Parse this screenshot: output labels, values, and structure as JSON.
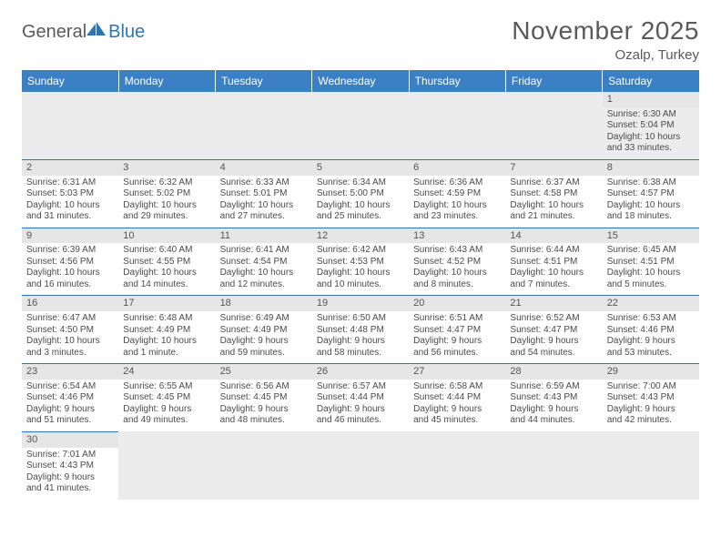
{
  "brand": {
    "part1": "General",
    "part2": "Blue"
  },
  "title": "November 2025",
  "location": "Ozalp, Turkey",
  "dayHeaders": [
    "Sunday",
    "Monday",
    "Tuesday",
    "Wednesday",
    "Thursday",
    "Friday",
    "Saturday"
  ],
  "colors": {
    "headerBg": "#3b7fc4",
    "headerText": "#ffffff",
    "border": "#2e74b5",
    "dayStrip": "#e6e6e6",
    "blankBg": "#ececec",
    "titleText": "#5a5a5a"
  },
  "typography": {
    "titleSize": 28,
    "locationSize": 15,
    "headerSize": 12,
    "cellSize": 10
  },
  "layout": {
    "cols": 7,
    "rows": 6
  },
  "weeks": [
    [
      null,
      null,
      null,
      null,
      null,
      null,
      {
        "n": "1",
        "sr": "Sunrise: 6:30 AM",
        "ss": "Sunset: 5:04 PM",
        "d1": "Daylight: 10 hours",
        "d2": "and 33 minutes."
      }
    ],
    [
      {
        "n": "2",
        "sr": "Sunrise: 6:31 AM",
        "ss": "Sunset: 5:03 PM",
        "d1": "Daylight: 10 hours",
        "d2": "and 31 minutes."
      },
      {
        "n": "3",
        "sr": "Sunrise: 6:32 AM",
        "ss": "Sunset: 5:02 PM",
        "d1": "Daylight: 10 hours",
        "d2": "and 29 minutes."
      },
      {
        "n": "4",
        "sr": "Sunrise: 6:33 AM",
        "ss": "Sunset: 5:01 PM",
        "d1": "Daylight: 10 hours",
        "d2": "and 27 minutes."
      },
      {
        "n": "5",
        "sr": "Sunrise: 6:34 AM",
        "ss": "Sunset: 5:00 PM",
        "d1": "Daylight: 10 hours",
        "d2": "and 25 minutes."
      },
      {
        "n": "6",
        "sr": "Sunrise: 6:36 AM",
        "ss": "Sunset: 4:59 PM",
        "d1": "Daylight: 10 hours",
        "d2": "and 23 minutes."
      },
      {
        "n": "7",
        "sr": "Sunrise: 6:37 AM",
        "ss": "Sunset: 4:58 PM",
        "d1": "Daylight: 10 hours",
        "d2": "and 21 minutes."
      },
      {
        "n": "8",
        "sr": "Sunrise: 6:38 AM",
        "ss": "Sunset: 4:57 PM",
        "d1": "Daylight: 10 hours",
        "d2": "and 18 minutes."
      }
    ],
    [
      {
        "n": "9",
        "sr": "Sunrise: 6:39 AM",
        "ss": "Sunset: 4:56 PM",
        "d1": "Daylight: 10 hours",
        "d2": "and 16 minutes."
      },
      {
        "n": "10",
        "sr": "Sunrise: 6:40 AM",
        "ss": "Sunset: 4:55 PM",
        "d1": "Daylight: 10 hours",
        "d2": "and 14 minutes."
      },
      {
        "n": "11",
        "sr": "Sunrise: 6:41 AM",
        "ss": "Sunset: 4:54 PM",
        "d1": "Daylight: 10 hours",
        "d2": "and 12 minutes."
      },
      {
        "n": "12",
        "sr": "Sunrise: 6:42 AM",
        "ss": "Sunset: 4:53 PM",
        "d1": "Daylight: 10 hours",
        "d2": "and 10 minutes."
      },
      {
        "n": "13",
        "sr": "Sunrise: 6:43 AM",
        "ss": "Sunset: 4:52 PM",
        "d1": "Daylight: 10 hours",
        "d2": "and 8 minutes."
      },
      {
        "n": "14",
        "sr": "Sunrise: 6:44 AM",
        "ss": "Sunset: 4:51 PM",
        "d1": "Daylight: 10 hours",
        "d2": "and 7 minutes."
      },
      {
        "n": "15",
        "sr": "Sunrise: 6:45 AM",
        "ss": "Sunset: 4:51 PM",
        "d1": "Daylight: 10 hours",
        "d2": "and 5 minutes."
      }
    ],
    [
      {
        "n": "16",
        "sr": "Sunrise: 6:47 AM",
        "ss": "Sunset: 4:50 PM",
        "d1": "Daylight: 10 hours",
        "d2": "and 3 minutes."
      },
      {
        "n": "17",
        "sr": "Sunrise: 6:48 AM",
        "ss": "Sunset: 4:49 PM",
        "d1": "Daylight: 10 hours",
        "d2": "and 1 minute."
      },
      {
        "n": "18",
        "sr": "Sunrise: 6:49 AM",
        "ss": "Sunset: 4:49 PM",
        "d1": "Daylight: 9 hours",
        "d2": "and 59 minutes."
      },
      {
        "n": "19",
        "sr": "Sunrise: 6:50 AM",
        "ss": "Sunset: 4:48 PM",
        "d1": "Daylight: 9 hours",
        "d2": "and 58 minutes."
      },
      {
        "n": "20",
        "sr": "Sunrise: 6:51 AM",
        "ss": "Sunset: 4:47 PM",
        "d1": "Daylight: 9 hours",
        "d2": "and 56 minutes."
      },
      {
        "n": "21",
        "sr": "Sunrise: 6:52 AM",
        "ss": "Sunset: 4:47 PM",
        "d1": "Daylight: 9 hours",
        "d2": "and 54 minutes."
      },
      {
        "n": "22",
        "sr": "Sunrise: 6:53 AM",
        "ss": "Sunset: 4:46 PM",
        "d1": "Daylight: 9 hours",
        "d2": "and 53 minutes."
      }
    ],
    [
      {
        "n": "23",
        "sr": "Sunrise: 6:54 AM",
        "ss": "Sunset: 4:46 PM",
        "d1": "Daylight: 9 hours",
        "d2": "and 51 minutes."
      },
      {
        "n": "24",
        "sr": "Sunrise: 6:55 AM",
        "ss": "Sunset: 4:45 PM",
        "d1": "Daylight: 9 hours",
        "d2": "and 49 minutes."
      },
      {
        "n": "25",
        "sr": "Sunrise: 6:56 AM",
        "ss": "Sunset: 4:45 PM",
        "d1": "Daylight: 9 hours",
        "d2": "and 48 minutes."
      },
      {
        "n": "26",
        "sr": "Sunrise: 6:57 AM",
        "ss": "Sunset: 4:44 PM",
        "d1": "Daylight: 9 hours",
        "d2": "and 46 minutes."
      },
      {
        "n": "27",
        "sr": "Sunrise: 6:58 AM",
        "ss": "Sunset: 4:44 PM",
        "d1": "Daylight: 9 hours",
        "d2": "and 45 minutes."
      },
      {
        "n": "28",
        "sr": "Sunrise: 6:59 AM",
        "ss": "Sunset: 4:43 PM",
        "d1": "Daylight: 9 hours",
        "d2": "and 44 minutes."
      },
      {
        "n": "29",
        "sr": "Sunrise: 7:00 AM",
        "ss": "Sunset: 4:43 PM",
        "d1": "Daylight: 9 hours",
        "d2": "and 42 minutes."
      }
    ],
    [
      {
        "n": "30",
        "sr": "Sunrise: 7:01 AM",
        "ss": "Sunset: 4:43 PM",
        "d1": "Daylight: 9 hours",
        "d2": "and 41 minutes."
      },
      null,
      null,
      null,
      null,
      null,
      null
    ]
  ]
}
